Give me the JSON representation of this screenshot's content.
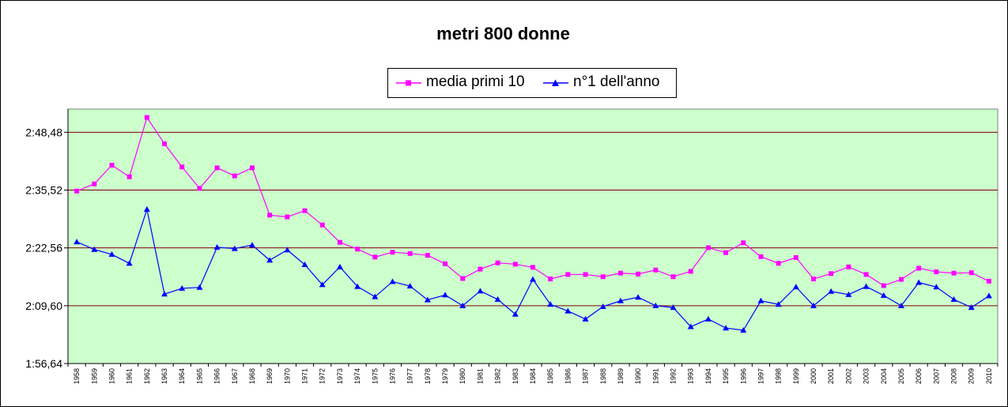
{
  "chart_data": {
    "type": "line",
    "title": "metri 800 donne",
    "xlabel": "",
    "ylabel": "",
    "ylim": [
      116.64,
      173.68
    ],
    "yticks": [
      "1:56,64",
      "2:09,60",
      "2:22,56",
      "2:35,52",
      "2:48,48"
    ],
    "ytick_values": [
      116.64,
      129.6,
      142.56,
      155.52,
      168.48
    ],
    "grid": true,
    "legend_position": "top",
    "plot_background": "#ccffcc",
    "gridline_color": "#800000",
    "categories": [
      "1958",
      "1959",
      "1960",
      "1961",
      "1962",
      "1963",
      "1964",
      "1965",
      "1966",
      "1967",
      "1968",
      "1969",
      "1970",
      "1971",
      "1972",
      "1973",
      "1974",
      "1975",
      "1976",
      "1977",
      "1978",
      "1979",
      "1980",
      "1981",
      "1982",
      "1983",
      "1984",
      "1985",
      "1986",
      "1987",
      "1988",
      "1989",
      "1990",
      "1991",
      "1992",
      "1993",
      "1994",
      "1995",
      "1996",
      "1997",
      "1998",
      "1999",
      "2000",
      "2001",
      "2002",
      "2003",
      "2004",
      "2005",
      "2006",
      "2007",
      "2008",
      "2009",
      "2010"
    ],
    "series": [
      {
        "name": "media primi 10",
        "color": "#ff00ff",
        "marker": "square",
        "values": [
          155.3,
          156.9,
          161.1,
          158.5,
          171.8,
          165.9,
          160.7,
          155.9,
          160.5,
          158.7,
          160.5,
          149.9,
          149.5,
          150.9,
          147.7,
          143.8,
          142.3,
          140.5,
          141.6,
          141.3,
          140.9,
          139.0,
          135.7,
          137.8,
          139.2,
          138.9,
          138.2,
          135.6,
          136.6,
          136.6,
          136.1,
          136.9,
          136.7,
          137.6,
          136.1,
          137.3,
          142.6,
          141.5,
          143.7,
          140.6,
          139.1,
          140.4,
          135.6,
          136.8,
          138.3,
          136.6,
          134.1,
          135.5,
          138.0,
          137.2,
          136.9,
          137.0,
          135.1
        ]
      },
      {
        "name": "n°1 dell'anno",
        "color": "#0000ff",
        "marker": "triangle",
        "values": [
          143.9,
          142.2,
          141.1,
          139.1,
          151.2,
          132.2,
          133.5,
          133.7,
          142.7,
          142.4,
          143.2,
          139.8,
          142.1,
          138.8,
          134.3,
          138.3,
          133.9,
          131.6,
          135.0,
          134.0,
          130.9,
          132.0,
          129.6,
          132.9,
          131.0,
          127.7,
          135.5,
          129.9,
          128.4,
          126.6,
          129.4,
          130.7,
          131.5,
          129.6,
          129.2,
          124.9,
          126.6,
          124.6,
          124.1,
          130.7,
          129.9,
          133.8,
          129.6,
          132.8,
          132.1,
          133.9,
          131.9,
          129.6,
          134.8,
          133.8,
          131.0,
          129.2,
          131.8
        ]
      }
    ]
  }
}
